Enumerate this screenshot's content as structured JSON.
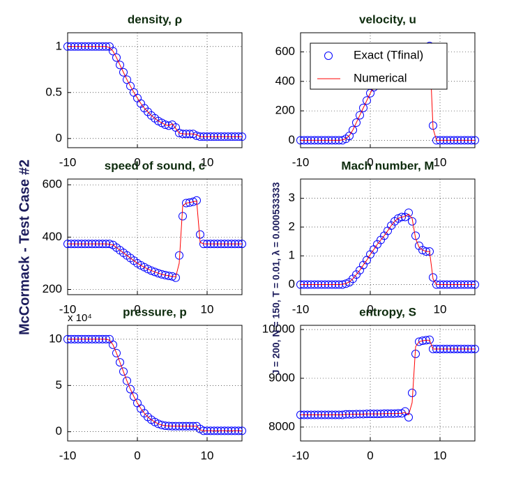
{
  "figure": {
    "suptitle": "McCormack - Test Case #2",
    "params": "J = 200,  N = 150,  T = 0.01,  λ = 0.000533333"
  },
  "chart_data": [
    {
      "type": "line",
      "title": "density, ρ",
      "x": [
        -10,
        -9.5,
        -9,
        -8.5,
        -8,
        -7.5,
        -7,
        -6.5,
        -6,
        -5.5,
        -5,
        -4.5,
        -4,
        -3.5,
        -3,
        -2.5,
        -2,
        -1.5,
        -1,
        -0.5,
        0,
        0.5,
        1,
        1.5,
        2,
        2.5,
        3,
        3.5,
        4,
        4.5,
        5,
        5.5,
        6,
        6.5,
        7,
        7.5,
        8,
        8.5,
        9,
        9.5,
        10,
        10.5,
        11,
        11.5,
        12,
        12.5,
        13,
        13.5,
        14,
        14.5,
        15
      ],
      "series": [
        {
          "color": "#0000ff",
          "marker": "circle",
          "values": [
            1,
            1,
            1,
            1,
            1,
            1,
            1,
            1,
            1,
            1,
            1,
            1,
            1,
            0.95,
            0.88,
            0.8,
            0.72,
            0.64,
            0.57,
            0.5,
            0.44,
            0.38,
            0.33,
            0.29,
            0.25,
            0.22,
            0.19,
            0.17,
            0.15,
            0.14,
            0.15,
            0.12,
            0.06,
            0.05,
            0.05,
            0.05,
            0.05,
            0.03,
            0.02,
            0.02,
            0.02,
            0.02,
            0.02,
            0.02,
            0.02,
            0.02,
            0.02,
            0.02,
            0.02,
            0.02,
            0.02
          ]
        },
        {
          "color": "#ff0000",
          "line": "solid",
          "values": [
            1,
            1,
            1,
            1,
            1,
            1,
            1,
            1,
            1,
            1,
            1,
            1,
            0.99,
            0.95,
            0.88,
            0.8,
            0.72,
            0.64,
            0.57,
            0.5,
            0.44,
            0.38,
            0.33,
            0.29,
            0.25,
            0.22,
            0.19,
            0.17,
            0.15,
            0.14,
            0.16,
            0.11,
            0.06,
            0.05,
            0.05,
            0.05,
            0.05,
            0.04,
            0.02,
            0.02,
            0.02,
            0.02,
            0.02,
            0.02,
            0.02,
            0.02,
            0.02,
            0.02,
            0.02,
            0.02,
            0.02
          ]
        }
      ],
      "xlim": [
        -10,
        15
      ],
      "xticks": [
        -10,
        0,
        10
      ],
      "ylim": [
        -0.1,
        1.15
      ],
      "yticks": [
        0,
        0.5,
        1
      ],
      "grid": true
    },
    {
      "type": "line",
      "title": "velocity, u",
      "x": [
        -10,
        -9.5,
        -9,
        -8.5,
        -8,
        -7.5,
        -7,
        -6.5,
        -6,
        -5.5,
        -5,
        -4.5,
        -4,
        -3.5,
        -3,
        -2.5,
        -2,
        -1.5,
        -1,
        -0.5,
        0,
        0.5,
        1,
        1.5,
        2,
        2.5,
        3,
        3.5,
        4,
        4.5,
        5,
        5.5,
        6,
        6.5,
        7,
        7.5,
        8,
        8.5,
        9,
        9.5,
        10,
        10.5,
        11,
        11.5,
        12,
        12.5,
        13,
        13.5,
        14,
        14.5,
        15
      ],
      "series": [
        {
          "name": "Exact (Tfinal)",
          "color": "#0000ff",
          "marker": "circle",
          "values": [
            0,
            0,
            0,
            0,
            0,
            0,
            0,
            0,
            0,
            0,
            0,
            0,
            0,
            10,
            30,
            70,
            120,
            170,
            220,
            270,
            320,
            360,
            400,
            430,
            460,
            480,
            500,
            520,
            535,
            550,
            560,
            570,
            580,
            590,
            600,
            610,
            620,
            640,
            100,
            0,
            0,
            0,
            0,
            0,
            0,
            0,
            0,
            0,
            0,
            0,
            0
          ]
        },
        {
          "name": "Numerical",
          "color": "#ff0000",
          "line": "solid",
          "values": [
            0,
            0,
            0,
            0,
            0,
            0,
            0,
            0,
            0,
            0,
            0,
            0,
            2,
            12,
            32,
            70,
            120,
            170,
            220,
            270,
            320,
            360,
            400,
            430,
            460,
            480,
            500,
            520,
            535,
            550,
            560,
            570,
            580,
            590,
            600,
            610,
            620,
            635,
            80,
            0,
            0,
            0,
            0,
            0,
            0,
            0,
            0,
            0,
            0,
            0,
            0
          ]
        }
      ],
      "xlim": [
        -10,
        15
      ],
      "xticks": [
        -10,
        0,
        10
      ],
      "ylim": [
        -50,
        730
      ],
      "yticks": [
        0,
        200,
        400,
        600
      ],
      "grid": true,
      "legend": "upper right"
    },
    {
      "type": "line",
      "title": "speed of sound, c",
      "x": [
        -10,
        -9.5,
        -9,
        -8.5,
        -8,
        -7.5,
        -7,
        -6.5,
        -6,
        -5.5,
        -5,
        -4.5,
        -4,
        -3.5,
        -3,
        -2.5,
        -2,
        -1.5,
        -1,
        -0.5,
        0,
        0.5,
        1,
        1.5,
        2,
        2.5,
        3,
        3.5,
        4,
        4.5,
        5,
        5.5,
        6,
        6.5,
        7,
        7.5,
        8,
        8.5,
        9,
        9.5,
        10,
        10.5,
        11,
        11.5,
        12,
        12.5,
        13,
        13.5,
        14,
        14.5,
        15
      ],
      "series": [
        {
          "color": "#0000ff",
          "marker": "circle",
          "values": [
            374,
            374,
            374,
            374,
            374,
            374,
            374,
            374,
            374,
            374,
            374,
            374,
            374,
            370,
            360,
            350,
            340,
            330,
            320,
            310,
            300,
            292,
            285,
            278,
            272,
            267,
            262,
            258,
            255,
            252,
            250,
            245,
            330,
            480,
            530,
            532,
            535,
            540,
            410,
            374,
            374,
            374,
            374,
            374,
            374,
            374,
            374,
            374,
            374,
            374,
            374
          ]
        },
        {
          "color": "#ff0000",
          "line": "solid",
          "values": [
            374,
            374,
            374,
            374,
            374,
            374,
            374,
            374,
            374,
            374,
            374,
            374,
            373,
            370,
            360,
            350,
            340,
            330,
            320,
            310,
            300,
            292,
            285,
            278,
            272,
            267,
            262,
            258,
            255,
            252,
            250,
            248,
            300,
            520,
            530,
            532,
            535,
            538,
            380,
            374,
            374,
            374,
            374,
            374,
            374,
            374,
            374,
            374,
            374,
            374,
            374
          ]
        }
      ],
      "xlim": [
        -10,
        15
      ],
      "xticks": [
        -10,
        0,
        10
      ],
      "ylim": [
        180,
        622
      ],
      "yticks": [
        200,
        400,
        600
      ],
      "grid": true
    },
    {
      "type": "line",
      "title": "Mach number, M",
      "x": [
        -10,
        -9.5,
        -9,
        -8.5,
        -8,
        -7.5,
        -7,
        -6.5,
        -6,
        -5.5,
        -5,
        -4.5,
        -4,
        -3.5,
        -3,
        -2.5,
        -2,
        -1.5,
        -1,
        -0.5,
        0,
        0.5,
        1,
        1.5,
        2,
        2.5,
        3,
        3.5,
        4,
        4.5,
        5,
        5.5,
        6,
        6.5,
        7,
        7.5,
        8,
        8.5,
        9,
        9.5,
        10,
        10.5,
        11,
        11.5,
        12,
        12.5,
        13,
        13.5,
        14,
        14.5,
        15
      ],
      "series": [
        {
          "color": "#0000ff",
          "marker": "circle",
          "values": [
            0,
            0,
            0,
            0,
            0,
            0,
            0,
            0,
            0,
            0,
            0,
            0,
            0,
            0.03,
            0.08,
            0.2,
            0.35,
            0.5,
            0.68,
            0.85,
            1.05,
            1.22,
            1.4,
            1.55,
            1.7,
            1.87,
            2.05,
            2.2,
            2.3,
            2.35,
            2.35,
            2.5,
            2.2,
            1.7,
            1.35,
            1.2,
            1.15,
            1.15,
            0.25,
            0,
            0,
            0,
            0,
            0,
            0,
            0,
            0,
            0,
            0,
            0,
            0
          ]
        },
        {
          "color": "#ff0000",
          "line": "solid",
          "values": [
            0,
            0,
            0,
            0,
            0,
            0,
            0,
            0,
            0,
            0,
            0,
            0,
            0.01,
            0.04,
            0.09,
            0.2,
            0.35,
            0.5,
            0.68,
            0.85,
            1.05,
            1.22,
            1.4,
            1.55,
            1.7,
            1.87,
            2.05,
            2.2,
            2.3,
            2.35,
            2.37,
            2.45,
            2.3,
            1.6,
            1.3,
            1.2,
            1.15,
            1.15,
            0.2,
            0,
            0,
            0,
            0,
            0,
            0,
            0,
            0,
            0,
            0,
            0,
            0
          ]
        }
      ],
      "xlim": [
        -10,
        15
      ],
      "xticks": [
        -10,
        0,
        10
      ],
      "ylim": [
        -0.35,
        3.67
      ],
      "yticks": [
        0,
        1,
        2,
        3
      ],
      "grid": true
    },
    {
      "type": "line",
      "title": "pressure, p",
      "y_multiplier": "x 10⁴",
      "x": [
        -10,
        -9.5,
        -9,
        -8.5,
        -8,
        -7.5,
        -7,
        -6.5,
        -6,
        -5.5,
        -5,
        -4.5,
        -4,
        -3.5,
        -3,
        -2.5,
        -2,
        -1.5,
        -1,
        -0.5,
        0,
        0.5,
        1,
        1.5,
        2,
        2.5,
        3,
        3.5,
        4,
        4.5,
        5,
        5.5,
        6,
        6.5,
        7,
        7.5,
        8,
        8.5,
        9,
        9.5,
        10,
        10.5,
        11,
        11.5,
        12,
        12.5,
        13,
        13.5,
        14,
        14.5,
        15
      ],
      "series": [
        {
          "color": "#0000ff",
          "marker": "circle",
          "values": [
            10,
            10,
            10,
            10,
            10,
            10,
            10,
            10,
            10,
            10,
            10,
            10,
            10,
            9.4,
            8.5,
            7.5,
            6.5,
            5.5,
            4.6,
            3.8,
            3.1,
            2.5,
            2,
            1.6,
            1.3,
            1.05,
            0.85,
            0.72,
            0.65,
            0.62,
            0.6,
            0.6,
            0.6,
            0.6,
            0.6,
            0.6,
            0.6,
            0.6,
            0.3,
            0.1,
            0.1,
            0.1,
            0.1,
            0.1,
            0.1,
            0.1,
            0.1,
            0.1,
            0.1,
            0.1,
            0.1
          ]
        },
        {
          "color": "#ff0000",
          "line": "solid",
          "values": [
            10,
            10,
            10,
            10,
            10,
            10,
            10,
            10,
            10,
            10,
            10,
            10,
            9.9,
            9.4,
            8.5,
            7.5,
            6.5,
            5.5,
            4.6,
            3.8,
            3.1,
            2.5,
            2,
            1.6,
            1.3,
            1.05,
            0.85,
            0.72,
            0.65,
            0.62,
            0.6,
            0.6,
            0.6,
            0.6,
            0.6,
            0.6,
            0.6,
            0.6,
            0.2,
            0.1,
            0.1,
            0.1,
            0.1,
            0.1,
            0.1,
            0.1,
            0.1,
            0.1,
            0.1,
            0.1,
            0.1
          ]
        }
      ],
      "xlim": [
        -10,
        15
      ],
      "xticks": [
        -10,
        0,
        10
      ],
      "ylim": [
        -1,
        11.5
      ],
      "yticks": [
        0,
        5,
        10
      ],
      "grid": true
    },
    {
      "type": "line",
      "title": "entropy, S",
      "x": [
        -10,
        -9.5,
        -9,
        -8.5,
        -8,
        -7.5,
        -7,
        -6.5,
        -6,
        -5.5,
        -5,
        -4.5,
        -4,
        -3.5,
        -3,
        -2.5,
        -2,
        -1.5,
        -1,
        -0.5,
        0,
        0.5,
        1,
        1.5,
        2,
        2.5,
        3,
        3.5,
        4,
        4.5,
        5,
        5.5,
        6,
        6.5,
        7,
        7.5,
        8,
        8.5,
        9,
        9.5,
        10,
        10.5,
        11,
        11.5,
        12,
        12.5,
        13,
        13.5,
        14,
        14.5,
        15
      ],
      "series": [
        {
          "color": "#0000ff",
          "marker": "circle",
          "values": [
            8250,
            8250,
            8250,
            8250,
            8250,
            8250,
            8250,
            8250,
            8250,
            8250,
            8250,
            8250,
            8250,
            8260,
            8260,
            8260,
            8265,
            8265,
            8265,
            8270,
            8270,
            8270,
            8270,
            8270,
            8275,
            8275,
            8275,
            8275,
            8280,
            8280,
            8320,
            8200,
            8700,
            9500,
            9750,
            9770,
            9780,
            9790,
            9600,
            9600,
            9600,
            9600,
            9600,
            9600,
            9600,
            9600,
            9600,
            9600,
            9600,
            9600,
            9600
          ]
        },
        {
          "color": "#ff0000",
          "line": "solid",
          "values": [
            8250,
            8250,
            8250,
            8250,
            8250,
            8250,
            8250,
            8250,
            8250,
            8250,
            8250,
            8250,
            8250,
            8260,
            8260,
            8260,
            8265,
            8265,
            8265,
            8270,
            8270,
            8270,
            8270,
            8270,
            8275,
            8275,
            8275,
            8275,
            8280,
            8280,
            8300,
            8250,
            8500,
            9650,
            9750,
            9770,
            9780,
            9780,
            9600,
            9600,
            9600,
            9600,
            9600,
            9600,
            9600,
            9600,
            9600,
            9600,
            9600,
            9600,
            9600
          ]
        }
      ],
      "xlim": [
        -10,
        15
      ],
      "xticks": [
        -10,
        0,
        10
      ],
      "ylim": [
        7714,
        10086
      ],
      "yticks": [
        8000,
        9000,
        10000
      ],
      "grid": true
    }
  ]
}
